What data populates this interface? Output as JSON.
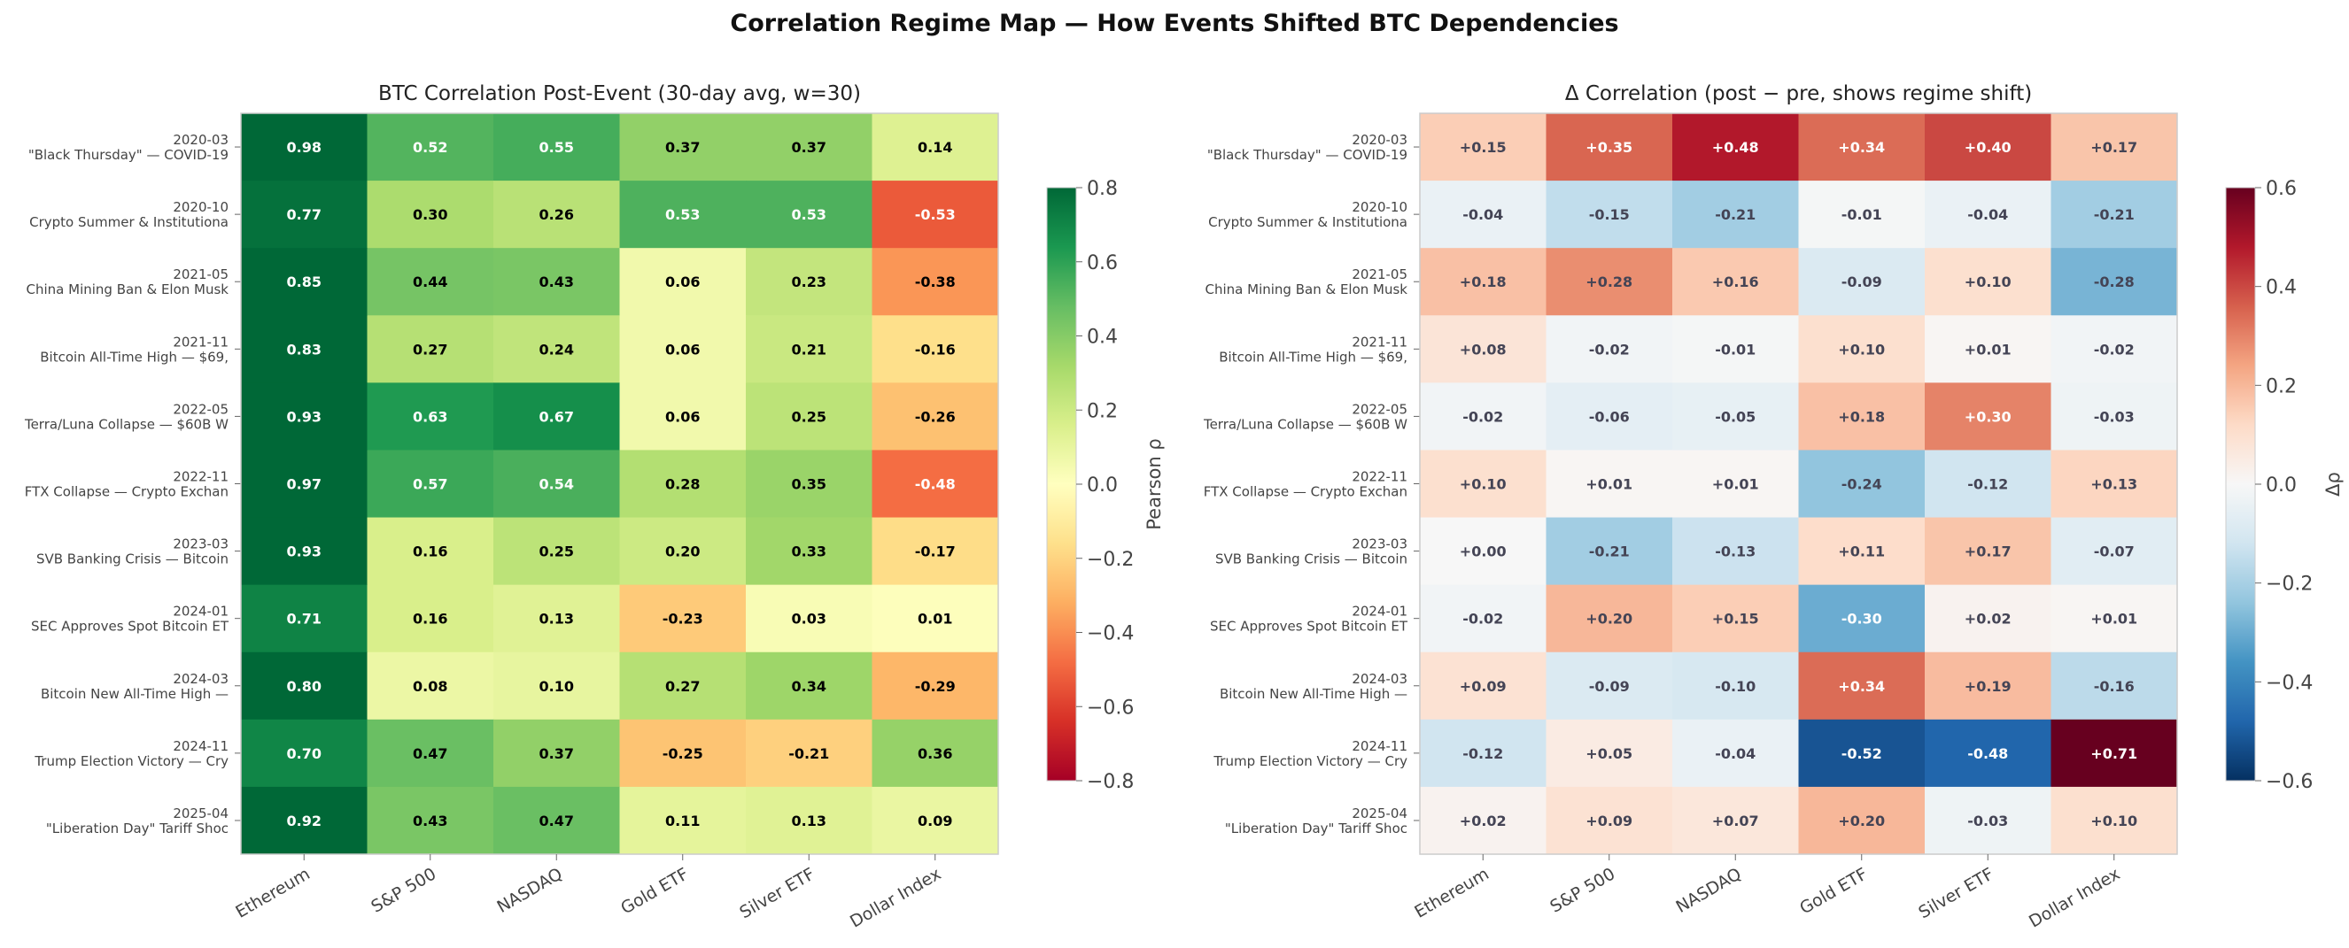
{
  "title": "Correlation Regime Map — How Events Shifted BTC Dependencies",
  "chart_data": [
    {
      "type": "heatmap",
      "title": "BTC Correlation Post-Event (30-day avg, w=30)",
      "colormap": "RdYlGn",
      "colorbar_label": "Pearson ρ",
      "vmin": -0.8,
      "vmax": 0.8,
      "colorbar_ticks": [
        "0.8",
        "0.6",
        "0.4",
        "0.2",
        "0.0",
        "−0.2",
        "−0.4",
        "−0.6",
        "−0.8"
      ],
      "columns": [
        "Ethereum",
        "S&P 500",
        "NASDAQ",
        "Gold ETF",
        "Silver ETF",
        "Dollar Index"
      ],
      "rows": [
        {
          "date": "2020-03",
          "event": "\"Black Thursday\" — COVID-19",
          "values": [
            0.98,
            0.52,
            0.55,
            0.37,
            0.37,
            0.14
          ],
          "labels": [
            "0.98",
            "0.52",
            "0.55",
            "0.37",
            "0.37",
            "0.14"
          ]
        },
        {
          "date": "2020-10",
          "event": "Crypto Summer & Institutiona",
          "values": [
            0.77,
            0.3,
            0.26,
            0.53,
            0.53,
            -0.53
          ],
          "labels": [
            "0.77",
            "0.30",
            "0.26",
            "0.53",
            "0.53",
            "-0.53"
          ]
        },
        {
          "date": "2021-05",
          "event": "China Mining Ban & Elon Musk",
          "values": [
            0.85,
            0.44,
            0.43,
            0.06,
            0.23,
            -0.38
          ],
          "labels": [
            "0.85",
            "0.44",
            "0.43",
            "0.06",
            "0.23",
            "-0.38"
          ]
        },
        {
          "date": "2021-11",
          "event": "Bitcoin All-Time High — $69,",
          "values": [
            0.83,
            0.27,
            0.24,
            0.06,
            0.21,
            -0.16
          ],
          "labels": [
            "0.83",
            "0.27",
            "0.24",
            "0.06",
            "0.21",
            "-0.16"
          ]
        },
        {
          "date": "2022-05",
          "event": "Terra/Luna Collapse — $60B W",
          "values": [
            0.93,
            0.63,
            0.67,
            0.06,
            0.25,
            -0.26
          ],
          "labels": [
            "0.93",
            "0.63",
            "0.67",
            "0.06",
            "0.25",
            "-0.26"
          ]
        },
        {
          "date": "2022-11",
          "event": "FTX Collapse — Crypto Exchan",
          "values": [
            0.97,
            0.57,
            0.54,
            0.28,
            0.35,
            -0.48
          ],
          "labels": [
            "0.97",
            "0.57",
            "0.54",
            "0.28",
            "0.35",
            "-0.48"
          ]
        },
        {
          "date": "2023-03",
          "event": "SVB Banking Crisis — Bitcoin",
          "values": [
            0.93,
            0.16,
            0.25,
            0.2,
            0.33,
            -0.17
          ],
          "labels": [
            "0.93",
            "0.16",
            "0.25",
            "0.20",
            "0.33",
            "-0.17"
          ]
        },
        {
          "date": "2024-01",
          "event": "SEC Approves Spot Bitcoin ET",
          "values": [
            0.71,
            0.16,
            0.13,
            -0.23,
            0.03,
            0.01
          ],
          "labels": [
            "0.71",
            "0.16",
            "0.13",
            "-0.23",
            "0.03",
            "0.01"
          ]
        },
        {
          "date": "2024-03",
          "event": "Bitcoin New All-Time High —",
          "values": [
            0.8,
            0.08,
            0.1,
            0.27,
            0.34,
            -0.29
          ],
          "labels": [
            "0.80",
            "0.08",
            "0.10",
            "0.27",
            "0.34",
            "-0.29"
          ]
        },
        {
          "date": "2024-11",
          "event": "Trump Election Victory — Cry",
          "values": [
            0.7,
            0.47,
            0.37,
            -0.25,
            -0.21,
            0.36
          ],
          "labels": [
            "0.70",
            "0.47",
            "0.37",
            "-0.25",
            "-0.21",
            "0.36"
          ]
        },
        {
          "date": "2025-04",
          "event": "\"Liberation Day\" Tariff Shoc",
          "values": [
            0.92,
            0.43,
            0.47,
            0.11,
            0.13,
            0.09
          ],
          "labels": [
            "0.92",
            "0.43",
            "0.47",
            "0.11",
            "0.13",
            "0.09"
          ]
        }
      ]
    },
    {
      "type": "heatmap",
      "title": "Δ Correlation (post − pre, shows regime shift)",
      "colormap": "RdBu_r",
      "colorbar_label": "Δρ",
      "vmin": -0.6,
      "vmax": 0.6,
      "colorbar_ticks": [
        "0.6",
        "0.4",
        "0.2",
        "0.0",
        "−0.2",
        "−0.4",
        "−0.6"
      ],
      "columns": [
        "Ethereum",
        "S&P 500",
        "NASDAQ",
        "Gold ETF",
        "Silver ETF",
        "Dollar Index"
      ],
      "rows": [
        {
          "date": "2020-03",
          "event": "\"Black Thursday\" — COVID-19",
          "values": [
            0.15,
            0.35,
            0.48,
            0.34,
            0.4,
            0.17
          ],
          "labels": [
            "+0.15",
            "+0.35",
            "+0.48",
            "+0.34",
            "+0.40",
            "+0.17"
          ]
        },
        {
          "date": "2020-10",
          "event": "Crypto Summer & Institutiona",
          "values": [
            -0.04,
            -0.15,
            -0.21,
            -0.01,
            -0.04,
            -0.21
          ],
          "labels": [
            "-0.04",
            "-0.15",
            "-0.21",
            "-0.01",
            "-0.04",
            "-0.21"
          ]
        },
        {
          "date": "2021-05",
          "event": "China Mining Ban & Elon Musk",
          "values": [
            0.18,
            0.28,
            0.16,
            -0.09,
            0.1,
            -0.28
          ],
          "labels": [
            "+0.18",
            "+0.28",
            "+0.16",
            "-0.09",
            "+0.10",
            "-0.28"
          ]
        },
        {
          "date": "2021-11",
          "event": "Bitcoin All-Time High — $69,",
          "values": [
            0.08,
            -0.02,
            -0.01,
            0.1,
            0.01,
            -0.02
          ],
          "labels": [
            "+0.08",
            "-0.02",
            "-0.01",
            "+0.10",
            "+0.01",
            "-0.02"
          ]
        },
        {
          "date": "2022-05",
          "event": "Terra/Luna Collapse — $60B W",
          "values": [
            -0.02,
            -0.06,
            -0.05,
            0.18,
            0.3,
            -0.03
          ],
          "labels": [
            "-0.02",
            "-0.06",
            "-0.05",
            "+0.18",
            "+0.30",
            "-0.03"
          ]
        },
        {
          "date": "2022-11",
          "event": "FTX Collapse — Crypto Exchan",
          "values": [
            0.1,
            0.01,
            0.01,
            -0.24,
            -0.12,
            0.13
          ],
          "labels": [
            "+0.10",
            "+0.01",
            "+0.01",
            "-0.24",
            "-0.12",
            "+0.13"
          ]
        },
        {
          "date": "2023-03",
          "event": "SVB Banking Crisis — Bitcoin",
          "values": [
            0.0,
            -0.21,
            -0.13,
            0.11,
            0.17,
            -0.07
          ],
          "labels": [
            "+0.00",
            "-0.21",
            "-0.13",
            "+0.11",
            "+0.17",
            "-0.07"
          ]
        },
        {
          "date": "2024-01",
          "event": "SEC Approves Spot Bitcoin ET",
          "values": [
            -0.02,
            0.2,
            0.15,
            -0.3,
            0.02,
            0.01
          ],
          "labels": [
            "-0.02",
            "+0.20",
            "+0.15",
            "-0.30",
            "+0.02",
            "+0.01"
          ]
        },
        {
          "date": "2024-03",
          "event": "Bitcoin New All-Time High —",
          "values": [
            0.09,
            -0.09,
            -0.1,
            0.34,
            0.19,
            -0.16
          ],
          "labels": [
            "+0.09",
            "-0.09",
            "-0.10",
            "+0.34",
            "+0.19",
            "-0.16"
          ]
        },
        {
          "date": "2024-11",
          "event": "Trump Election Victory — Cry",
          "values": [
            -0.12,
            0.05,
            -0.04,
            -0.52,
            -0.48,
            0.71
          ],
          "labels": [
            "-0.12",
            "+0.05",
            "-0.04",
            "-0.52",
            "-0.48",
            "+0.71"
          ]
        },
        {
          "date": "2025-04",
          "event": "\"Liberation Day\" Tariff Shoc",
          "values": [
            0.02,
            0.09,
            0.07,
            0.2,
            -0.03,
            0.1
          ],
          "labels": [
            "+0.02",
            "+0.09",
            "+0.07",
            "+0.20",
            "-0.03",
            "+0.10"
          ]
        }
      ]
    }
  ]
}
